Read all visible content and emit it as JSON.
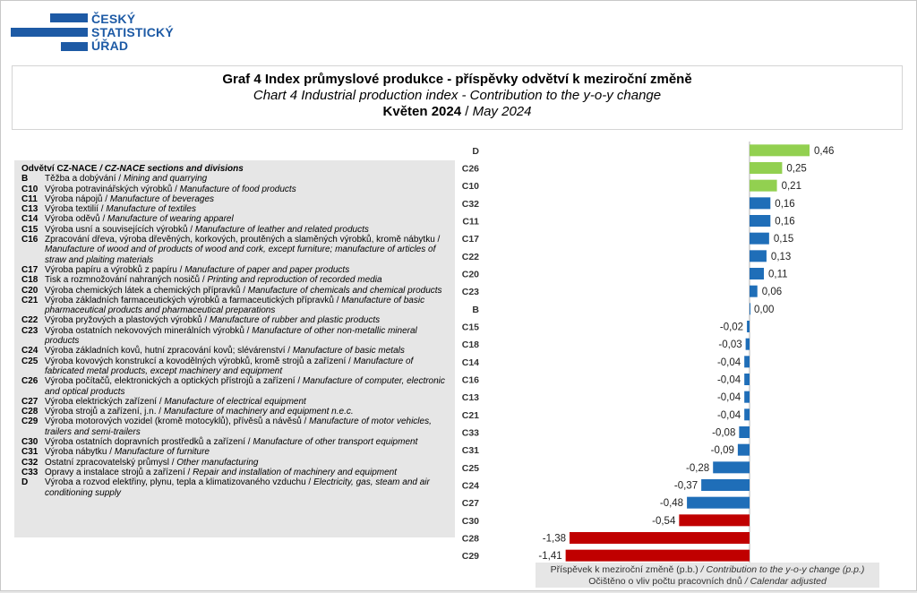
{
  "logo": {
    "line1": "ČESKÝ",
    "line2": "STATISTICKÝ",
    "line3": "ÚŘAD",
    "color": "#1d5aa5"
  },
  "title": {
    "line1": "Graf 4 Index průmyslové  produkce - příspěvky odvětví k meziroční  změně",
    "line2": "Chart 4 Industrial production index - Contribution to the y-o-y change",
    "month_cz": "Květen 2024",
    "separator": " / ",
    "month_en": "May 2024"
  },
  "legend": {
    "header_cz": "Odvětví CZ-NACE",
    "header_en": " / CZ-NACE sections and divisions",
    "items": [
      {
        "code": "B",
        "cz": "Těžba a dobývání / ",
        "en": "Mining and quarrying"
      },
      {
        "code": "C10",
        "cz": "Výroba potravinářských výrobků / ",
        "en": "Manufacture of food products"
      },
      {
        "code": "C11",
        "cz": "Výroba nápojů / ",
        "en": "Manufacture of beverages"
      },
      {
        "code": "C13",
        "cz": "Výroba textilií / ",
        "en": "Manufacture of textiles"
      },
      {
        "code": "C14",
        "cz": "Výroba oděvů / ",
        "en": "Manufacture of wearing  apparel"
      },
      {
        "code": "C15",
        "cz": "Výroba usní a souvisejících výrobků / ",
        "en": "Manufacture of leather and related products"
      },
      {
        "code": "C16",
        "cz": "Zpracování dřeva, výroba dřevěných, korkových, proutěných a slaměných výrobků, kromě nábytku / ",
        "en": "Manufacture of wood and of products of wood and cork, except furniture; manufacture of articles of straw and plaiting materials"
      },
      {
        "code": "C17",
        "cz": "Výroba papíru a výrobků z papíru / ",
        "en": "Manufacture of paper and paper products"
      },
      {
        "code": "C18",
        "cz": "Tisk a rozmnožování nahraných nosičů / ",
        "en": "Printing and reproduction of recorded media"
      },
      {
        "code": "C20",
        "cz": "Výroba chemických látek a chemických přípravků / ",
        "en": "Manufacture of chemicals and chemical products"
      },
      {
        "code": "C21",
        "cz": "Výroba základních farmaceutických výrobků a farmaceutických přípravků / ",
        "en": "Manufacture of basic pharmaceutical products and pharmaceutical preparations"
      },
      {
        "code": "C22",
        "cz": "Výroba pryžových a plastových výrobků / ",
        "en": "Manufacture of rubber and plastic products"
      },
      {
        "code": "C23",
        "cz": "Výroba ostatních nekovových minerálních výrobků / ",
        "en": "Manufacture of other non-metallic mineral products"
      },
      {
        "code": "C24",
        "cz": "Výroba základních kovů, hutní zpracování kovů; slévárenství / ",
        "en": "Manufacture of basic metals"
      },
      {
        "code": "C25",
        "cz": "Výroba kovových konstrukcí a kovodělných výrobků, kromě strojů a zařízení / ",
        "en": "Manufacture of fabricated metal products, except machinery and equipment"
      },
      {
        "code": "C26",
        "cz": "Výroba počítačů, elektronických a optických přístrojů a zařízení / ",
        "en": "Manufacture of computer, electronic and optical products"
      },
      {
        "code": "C27",
        "cz": "Výroba elektrických zařízení / ",
        "en": "Manufacture of electrical equipment"
      },
      {
        "code": "C28",
        "cz": "Výroba strojů a zařízení, j.n. / ",
        "en": "Manufacture of machinery and equipment n.e.c."
      },
      {
        "code": "C29",
        "cz": "Výroba motorových vozidel (kromě motocyklů), přívěsů a návěsů / ",
        "en": "Manufacture of motor vehicles, trailers and semi-trailers"
      },
      {
        "code": "C30",
        "cz": "Výroba ostatních dopravních  prostředků a zařízení / ",
        "en": "Manufacture of other transport equipment"
      },
      {
        "code": "C31",
        "cz": "Výroba nábytku / ",
        "en": "Manufacture of furniture"
      },
      {
        "code": "C32",
        "cz": "Ostatní zpracovatelský průmysl / ",
        "en": "Other manufacturing"
      },
      {
        "code": "C33",
        "cz": "Opravy  a instalace strojů a zařízení / ",
        "en": "Repair and installation of machinery and equipment"
      },
      {
        "code": "D",
        "cz": "Výroba a rozvod elektřiny, plynu, tepla a klimatizovaného vzduchu / ",
        "en": "Electricity, gas, steam and air conditioning supply"
      }
    ]
  },
  "axis": {
    "xlabel_line1_cz": "Příspěvek k meziroční změně (p.b.)",
    "xlabel_line1_en": " / Contribution to the y-o-y change (p.p.)",
    "xlabel_line2_cz": "Očištěno o vliv počtu pracovních dnů",
    "xlabel_line2_en": " / Calendar adjusted"
  },
  "colors": {
    "green": "#92d050",
    "blue": "#1f6eb8",
    "red": "#c00000"
  },
  "chart_data": {
    "type": "bar",
    "orientation": "horizontal",
    "categories": [
      "D",
      "C26",
      "C10",
      "C32",
      "C11",
      "C17",
      "C22",
      "C20",
      "C23",
      "B",
      "C15",
      "C18",
      "C14",
      "C16",
      "C13",
      "C21",
      "C33",
      "C31",
      "C25",
      "C24",
      "C27",
      "C30",
      "C28",
      "C29"
    ],
    "values": [
      0.46,
      0.25,
      0.21,
      0.16,
      0.16,
      0.15,
      0.13,
      0.11,
      0.06,
      0.0,
      -0.02,
      -0.03,
      -0.04,
      -0.04,
      -0.04,
      -0.04,
      -0.08,
      -0.09,
      -0.28,
      -0.37,
      -0.48,
      -0.54,
      -1.38,
      -1.41
    ],
    "labels": [
      "0,46",
      "0,25",
      "0,21",
      "0,16",
      "0,16",
      "0,15",
      "0,13",
      "0,11",
      "0,06",
      "0,00",
      "-0,02",
      "-0,03",
      "-0,04",
      "-0,04",
      "-0,04",
      "-0,04",
      "-0,08",
      "-0,09",
      "-0,28",
      "-0,37",
      "-0,48",
      "-0,54",
      "-1,38",
      "-1,41"
    ],
    "bar_colors": [
      "green",
      "green",
      "green",
      "blue",
      "blue",
      "blue",
      "blue",
      "blue",
      "blue",
      "blue",
      "blue",
      "blue",
      "blue",
      "blue",
      "blue",
      "blue",
      "blue",
      "blue",
      "blue",
      "blue",
      "blue",
      "red",
      "red",
      "red"
    ],
    "xlim": [
      -1.41,
      0.46
    ]
  }
}
